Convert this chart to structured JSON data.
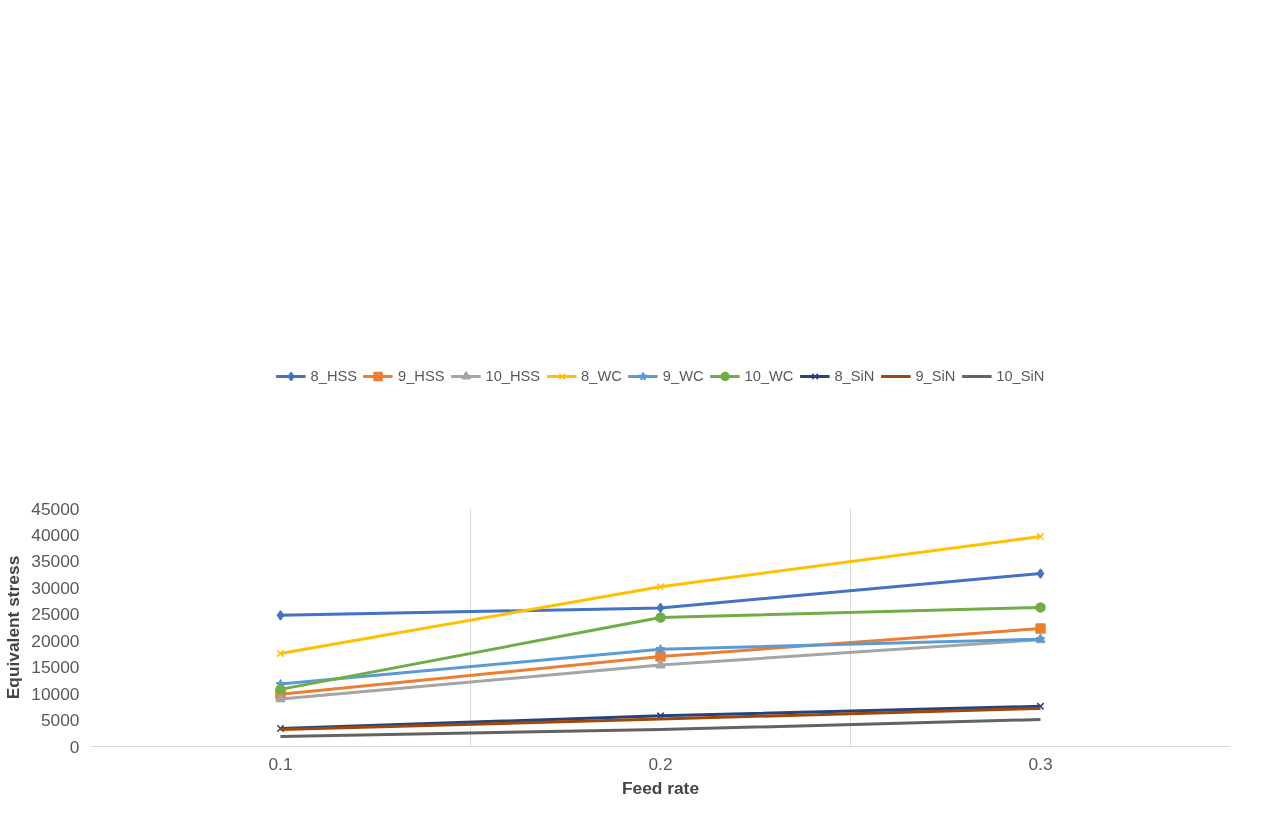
{
  "chart_data": {
    "type": "line",
    "xlabel": "Feed rate",
    "ylabel": "Equivalent stress",
    "categories": [
      "0.1",
      "0.2",
      "0.3"
    ],
    "ylim": [
      0,
      45000
    ],
    "yticks": [
      0,
      5000,
      10000,
      15000,
      20000,
      25000,
      30000,
      35000,
      40000,
      45000
    ],
    "grid": "x",
    "legend": "top",
    "line_style": "solid",
    "series": [
      {
        "name": "8_HSS",
        "color": "#4472c4",
        "marker": "diamond",
        "values": [
          24800,
          26200,
          32700
        ]
      },
      {
        "name": "9_HSS",
        "color": "#ed7d31",
        "marker": "square",
        "values": [
          9900,
          17000,
          22300
        ]
      },
      {
        "name": "10_HSS",
        "color": "#a5a5a5",
        "marker": "triangle",
        "values": [
          9000,
          15400,
          20200
        ]
      },
      {
        "name": "8_WC",
        "color": "#ffc000",
        "marker": "cross",
        "values": [
          17600,
          30200,
          39700
        ]
      },
      {
        "name": "9_WC",
        "color": "#5b9bd5",
        "marker": "star",
        "values": [
          11800,
          18400,
          20300
        ]
      },
      {
        "name": "10_WC",
        "color": "#70ad47",
        "marker": "circle",
        "values": [
          10800,
          24400,
          26300
        ]
      },
      {
        "name": "8_SiN",
        "color": "#264478",
        "marker": "cross",
        "values": [
          3400,
          5800,
          7600
        ]
      },
      {
        "name": "9_SiN",
        "color": "#9e480e",
        "marker": "none",
        "values": [
          3200,
          5200,
          7200
        ]
      },
      {
        "name": "10_SiN",
        "color": "#636363",
        "marker": "none",
        "values": [
          1900,
          3200,
          5100
        ]
      }
    ]
  }
}
